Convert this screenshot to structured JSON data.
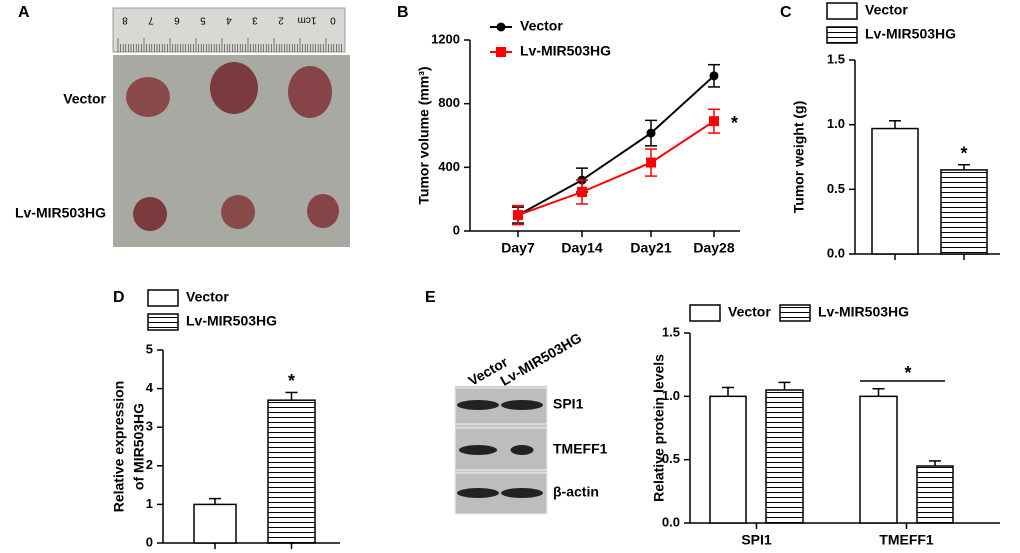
{
  "chart_data": [
    {
      "type": "image",
      "panel": "A",
      "ruler_labels": [
        "0",
        "1cm",
        "2",
        "3",
        "4",
        "5",
        "6",
        "7",
        "8"
      ],
      "row_labels": [
        "Vector",
        "Lv-MIR503HG"
      ]
    },
    {
      "type": "line",
      "panel": "B",
      "ylabel": "Tumor volume (mm³)",
      "categories": [
        "Day7",
        "Day14",
        "Day21",
        "Day28"
      ],
      "series": [
        {
          "name": "Vector",
          "color": "#000000",
          "marker": "circle",
          "values": [
            100,
            320,
            615,
            975
          ],
          "errors": [
            50,
            75,
            80,
            70
          ]
        },
        {
          "name": "Lv-MIR503HG",
          "color": "#ff0000",
          "marker": "square",
          "values": [
            100,
            245,
            430,
            690
          ],
          "errors": [
            60,
            75,
            85,
            75
          ]
        }
      ],
      "ylim": [
        0,
        1200
      ],
      "yticks": [
        0,
        400,
        800,
        1200
      ],
      "annotation": "*"
    },
    {
      "type": "bar",
      "panel": "C",
      "ylabel": "Tumor weight (g)",
      "categories": [
        "Vector",
        "Lv-MIR503HG"
      ],
      "values": [
        0.97,
        0.65
      ],
      "errors": [
        0.06,
        0.04
      ],
      "ylim": [
        0,
        1.5
      ],
      "yticks": [
        {
          "value": 0,
          "label": "0.0"
        },
        {
          "value": 0.5,
          "label": "0.5"
        },
        {
          "value": 1,
          "label": "1.0"
        },
        {
          "value": 1.5,
          "label": "1.5"
        }
      ],
      "annotation": "*"
    },
    {
      "type": "bar",
      "panel": "D",
      "ylabel": [
        "Relative expression",
        "of MIR503HG"
      ],
      "categories": [
        "Vector",
        "Lv-MIR503HG"
      ],
      "values": [
        1.0,
        3.7
      ],
      "errors": [
        0.15,
        0.2
      ],
      "ylim": [
        0,
        5
      ],
      "yticks": [
        0,
        1,
        2,
        3,
        4,
        5
      ],
      "annotation": "*"
    },
    {
      "type": "blot",
      "panel": "E",
      "lanes": [
        "Vector",
        "Lv-MIR503HG"
      ],
      "bands": [
        "SPI1",
        "TMEFF1",
        "β-actin"
      ]
    },
    {
      "type": "grouped_bar",
      "ylabel": "Relative protein levels",
      "categories": [
        "SPI1",
        "TMEFF1"
      ],
      "series": [
        {
          "name": "Vector",
          "values": [
            1.0,
            1.0
          ],
          "errors": [
            0.07,
            0.06
          ]
        },
        {
          "name": "Lv-MIR503HG",
          "values": [
            1.05,
            0.45
          ],
          "errors": [
            0.06,
            0.04
          ]
        }
      ],
      "ylim": [
        0,
        1.5
      ],
      "yticks": [
        {
          "value": 0,
          "label": "0.0"
        },
        {
          "value": 0.5,
          "label": "0.5"
        },
        {
          "value": 1,
          "label": "1.0"
        },
        {
          "value": 1.5,
          "label": "1.5"
        }
      ],
      "annotation": "*"
    }
  ]
}
